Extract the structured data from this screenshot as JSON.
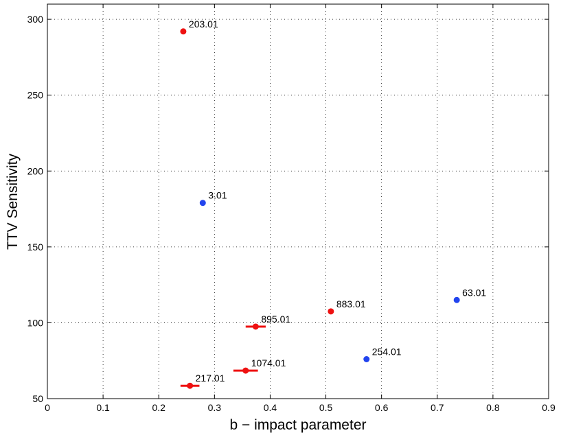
{
  "chart_data": {
    "type": "scatter",
    "title": "",
    "xlabel": "b − impact parameter",
    "ylabel": "TTV Sensitivity",
    "xlim": [
      0,
      0.9
    ],
    "ylim": [
      50,
      310
    ],
    "xticks": [
      0,
      0.1,
      0.2,
      0.3,
      0.4,
      0.5,
      0.6,
      0.7,
      0.8,
      0.9
    ],
    "xtick_labels": [
      "0",
      "0.1",
      "0.2",
      "0.3",
      "0.4",
      "0.5",
      "0.6",
      "0.7",
      "0.8",
      "0.9"
    ],
    "yticks": [
      50,
      100,
      150,
      200,
      250,
      300
    ],
    "ytick_labels": [
      "50",
      "100",
      "150",
      "200",
      "250",
      "300"
    ],
    "grid": true,
    "grid_style": "dotted",
    "colors": {
      "red": "#ee1111",
      "blue": "#2244ee"
    },
    "points": [
      {
        "label": "203.01",
        "x": 0.244,
        "y": 292,
        "color": "red",
        "xerr": 0
      },
      {
        "label": "3.01",
        "x": 0.279,
        "y": 179,
        "color": "blue",
        "xerr": 0
      },
      {
        "label": "63.01",
        "x": 0.735,
        "y": 115,
        "color": "blue",
        "xerr": 0
      },
      {
        "label": "883.01",
        "x": 0.509,
        "y": 107.5,
        "color": "red",
        "xerr": 0
      },
      {
        "label": "895.01",
        "x": 0.374,
        "y": 97.5,
        "color": "red",
        "xerr": 0.018
      },
      {
        "label": "254.01",
        "x": 0.573,
        "y": 76,
        "color": "blue",
        "xerr": 0
      },
      {
        "label": "1074.01",
        "x": 0.356,
        "y": 68.5,
        "color": "red",
        "xerr": 0.022
      },
      {
        "label": "217.01",
        "x": 0.256,
        "y": 58.5,
        "color": "red",
        "xerr": 0.017
      }
    ]
  }
}
